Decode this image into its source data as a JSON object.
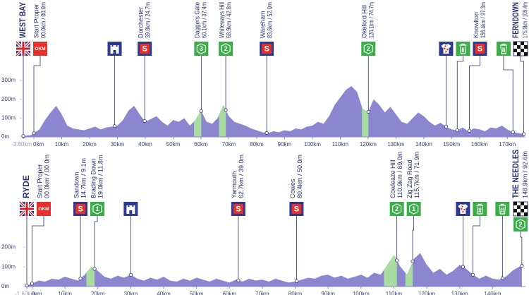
{
  "chart_data": [
    {
      "type": "area",
      "color": "#8c86d0",
      "climb_color": "#a8dca0",
      "x": [
        -3.8,
        -1,
        0,
        2,
        4,
        6,
        8,
        10,
        12,
        14,
        16,
        18,
        20,
        22,
        24,
        26,
        28,
        30,
        32,
        34,
        36,
        38,
        40,
        42,
        44,
        46,
        48,
        50,
        52,
        54,
        56,
        58,
        60,
        62,
        64,
        66,
        68,
        70,
        72,
        74,
        76,
        78,
        80,
        82,
        84,
        86,
        88,
        90,
        92,
        94,
        96,
        98,
        100,
        102,
        104,
        106,
        108,
        110,
        112,
        114,
        116,
        118,
        120,
        122,
        124,
        126,
        128,
        130,
        132,
        134,
        136,
        138,
        140,
        142,
        144,
        146,
        148,
        150,
        152,
        154,
        156,
        158,
        160,
        162,
        164,
        166,
        168,
        170,
        172,
        174,
        175.9
      ],
      "values": [
        5,
        10,
        20,
        40,
        90,
        130,
        165,
        120,
        60,
        45,
        40,
        35,
        45,
        55,
        40,
        50,
        55,
        60,
        90,
        140,
        165,
        120,
        80,
        95,
        110,
        80,
        60,
        90,
        80,
        100,
        60,
        90,
        140,
        80,
        70,
        100,
        170,
        110,
        80,
        70,
        60,
        45,
        35,
        25,
        20,
        30,
        25,
        35,
        30,
        45,
        40,
        55,
        60,
        80,
        70,
        110,
        170,
        210,
        250,
        270,
        240,
        150,
        130,
        200,
        170,
        130,
        160,
        120,
        80,
        70,
        100,
        130,
        110,
        80,
        60,
        75,
        55,
        40,
        35,
        50,
        30,
        45,
        40,
        30,
        50,
        45,
        60,
        40,
        25,
        20,
        15
      ],
      "xlim": [
        -3.8,
        176.5
      ],
      "xticks": [
        {
          "value": -3.8,
          "label": "-3.80km"
        },
        {
          "value": 0,
          "label": "0km"
        },
        {
          "value": 10,
          "label": "10km"
        },
        {
          "value": 20,
          "label": "20km"
        },
        {
          "value": 30,
          "label": "30km"
        },
        {
          "value": 40,
          "label": "40km"
        },
        {
          "value": 50,
          "label": "50km"
        },
        {
          "value": 60,
          "label": "60km"
        },
        {
          "value": 70,
          "label": "70km"
        },
        {
          "value": 80,
          "label": "80km"
        },
        {
          "value": 90,
          "label": "90km"
        },
        {
          "value": 100,
          "label": "100km"
        },
        {
          "value": 110,
          "label": "110km"
        },
        {
          "value": 120,
          "label": "120km"
        },
        {
          "value": 130,
          "label": "130km"
        },
        {
          "value": 140,
          "label": "140km"
        },
        {
          "value": 150,
          "label": "150km"
        },
        {
          "value": 160,
          "label": "160km"
        },
        {
          "value": 170,
          "label": "170km"
        }
      ],
      "ylim": [
        0,
        330
      ],
      "yticks": [
        {
          "value": 0,
          "label": "0m"
        },
        {
          "value": 100,
          "label": "100m"
        },
        {
          "value": 200,
          "label": "200m"
        },
        {
          "value": 300,
          "label": "300m"
        }
      ],
      "climbs": [
        {
          "start": 57.5,
          "end": 60.1
        },
        {
          "start": 66.5,
          "end": 68.9
        },
        {
          "start": 117.8,
          "end": 120.1
        }
      ],
      "waypoints": [
        {
          "x": -3.8,
          "name": "WEST BAY",
          "emphasis": true,
          "icons": [
            {
              "kind": "flag"
            }
          ]
        },
        {
          "x": 0,
          "name": "Start Proper",
          "detail": "00.0km / 00.0m",
          "icons": [
            {
              "kind": "okm",
              "text": "OKM"
            }
          ]
        },
        {
          "x": 29,
          "icons": [
            {
              "kind": "castle"
            }
          ]
        },
        {
          "x": 39.8,
          "name": "Dorchester",
          "detail": "39.8km / 24.7m",
          "icons": [
            {
              "kind": "sprint",
              "text": "S"
            }
          ]
        },
        {
          "x": 60.1,
          "name": "Daggers Gate",
          "detail": "60.1km / 37.4m",
          "icons": [
            {
              "kind": "kom",
              "text": "3"
            }
          ]
        },
        {
          "x": 68.9,
          "name": "Whiteways Hill",
          "detail": "68.9km / 42.8m",
          "icons": [
            {
              "kind": "kom",
              "text": "2"
            }
          ]
        },
        {
          "x": 83.6,
          "name": "Wareham",
          "detail": "83.6km / 52.0m",
          "icons": [
            {
              "kind": "sprint",
              "text": "S"
            }
          ]
        },
        {
          "x": 120.1,
          "name": "Okeford Hill",
          "detail": "120.1km / 74.7m",
          "icons": [
            {
              "kind": "kom",
              "text": "2"
            }
          ]
        },
        {
          "x": 148,
          "icons": [
            {
              "kind": "jersey"
            }
          ]
        },
        {
          "x": 152,
          "icons": [
            {
              "kind": "bin"
            }
          ]
        },
        {
          "x": 156.4,
          "name": "Knowlton",
          "detail": "156.4km / 97.3m",
          "icons": [
            {
              "kind": "sprint",
              "text": "S"
            }
          ]
        },
        {
          "x": 172,
          "icons": [
            {
              "kind": "bin"
            }
          ]
        },
        {
          "x": 175.9,
          "name": "FERNDOWN",
          "detail": "175.9km / 109.4m",
          "emphasis": true,
          "icons": [
            {
              "kind": "finish"
            }
          ]
        }
      ]
    },
    {
      "type": "area",
      "color": "#8c86d0",
      "climb_color": "#a8dca0",
      "x": [
        -1.6,
        0,
        2,
        4,
        6,
        8,
        10,
        12,
        14,
        16,
        18,
        20,
        22,
        24,
        26,
        28,
        30,
        32,
        34,
        36,
        38,
        40,
        42,
        44,
        46,
        48,
        50,
        52,
        54,
        56,
        58,
        60,
        62,
        64,
        66,
        68,
        70,
        72,
        74,
        76,
        78,
        80,
        82,
        84,
        86,
        88,
        90,
        92,
        94,
        96,
        98,
        100,
        102,
        104,
        106,
        108,
        110,
        112,
        114,
        116,
        118,
        120,
        122,
        124,
        126,
        128,
        130,
        132,
        134,
        136,
        138,
        140,
        142,
        144,
        146,
        148,
        148.9
      ],
      "values": [
        5,
        15,
        30,
        25,
        40,
        35,
        50,
        40,
        30,
        60,
        100,
        80,
        50,
        40,
        55,
        45,
        60,
        40,
        30,
        45,
        35,
        50,
        30,
        25,
        40,
        30,
        45,
        35,
        25,
        40,
        30,
        20,
        35,
        25,
        40,
        30,
        35,
        25,
        40,
        30,
        20,
        25,
        35,
        45,
        40,
        55,
        60,
        45,
        55,
        40,
        50,
        60,
        45,
        70,
        60,
        110,
        160,
        100,
        60,
        140,
        170,
        110,
        70,
        90,
        60,
        80,
        110,
        90,
        60,
        40,
        55,
        40,
        35,
        50,
        80,
        100,
        105
      ],
      "xlim": [
        -1.6,
        150
      ],
      "xticks": [
        {
          "value": -1.6,
          "label": "-1.60km"
        },
        {
          "value": 0,
          "label": "0km"
        },
        {
          "value": 10,
          "label": "10km"
        },
        {
          "value": 20,
          "label": "20km"
        },
        {
          "value": 30,
          "label": "30km"
        },
        {
          "value": 40,
          "label": "40km"
        },
        {
          "value": 50,
          "label": "50km"
        },
        {
          "value": 60,
          "label": "60km"
        },
        {
          "value": 70,
          "label": "70km"
        },
        {
          "value": 80,
          "label": "80km"
        },
        {
          "value": 90,
          "label": "90km"
        },
        {
          "value": 100,
          "label": "100km"
        },
        {
          "value": 110,
          "label": "110km"
        },
        {
          "value": 120,
          "label": "120km"
        },
        {
          "value": 130,
          "label": "130km"
        },
        {
          "value": 140,
          "label": "140km"
        }
      ],
      "ylim": [
        0,
        280
      ],
      "yticks": [
        {
          "value": 0,
          "label": "0m"
        },
        {
          "value": 100,
          "label": "100m"
        },
        {
          "value": 200,
          "label": "200m"
        }
      ],
      "climbs": [
        {
          "start": 16.5,
          "end": 19
        },
        {
          "start": 107,
          "end": 110.9
        },
        {
          "start": 113.5,
          "end": 115.7
        }
      ],
      "waypoints": [
        {
          "x": -1.6,
          "name": "RYDE",
          "emphasis": true,
          "icons": [
            {
              "kind": "flag"
            }
          ]
        },
        {
          "x": 0,
          "name": "Start Proper",
          "detail": "00.0km / 00.0m",
          "icons": [
            {
              "kind": "okm",
              "text": "OKM"
            }
          ]
        },
        {
          "x": 14.7,
          "name": "Sandown",
          "detail": "14.7km / 9.1m",
          "icons": [
            {
              "kind": "sprint",
              "text": "S"
            }
          ]
        },
        {
          "x": 19,
          "name": "Brading Down",
          "detail": "19.0km / 11.8m",
          "icons": [
            {
              "kind": "kom",
              "text": "1"
            }
          ]
        },
        {
          "x": 30,
          "icons": [
            {
              "kind": "castle"
            }
          ]
        },
        {
          "x": 62.7,
          "name": "Yarmouth",
          "detail": "62.7km / 39.0m",
          "icons": [
            {
              "kind": "sprint",
              "text": "S"
            }
          ]
        },
        {
          "x": 80.4,
          "name": "Cowes",
          "detail": "80.4km / 50.0m",
          "icons": [
            {
              "kind": "sprint",
              "text": "S"
            }
          ]
        },
        {
          "x": 110.9,
          "name": "Cowleaze Hill",
          "detail": "110.9km / 69.0m",
          "icons": [
            {
              "kind": "kom",
              "text": "2"
            }
          ]
        },
        {
          "x": 115.7,
          "name": "Zig Zag Road",
          "detail": "115.7km / 71.9m",
          "icons": [
            {
              "kind": "kom",
              "text": "1"
            }
          ]
        },
        {
          "x": 131,
          "icons": [
            {
              "kind": "jersey"
            }
          ]
        },
        {
          "x": 134,
          "icons": [
            {
              "kind": "bin"
            }
          ]
        },
        {
          "x": 143,
          "icons": [
            {
              "kind": "bin"
            }
          ]
        },
        {
          "x": 148.9,
          "name": "THE NEEDLES",
          "detail": "148.9km / 92.6m",
          "emphasis": true,
          "icons": [
            {
              "kind": "finish"
            },
            {
              "kind": "kom",
              "text": "2"
            }
          ]
        }
      ]
    }
  ]
}
